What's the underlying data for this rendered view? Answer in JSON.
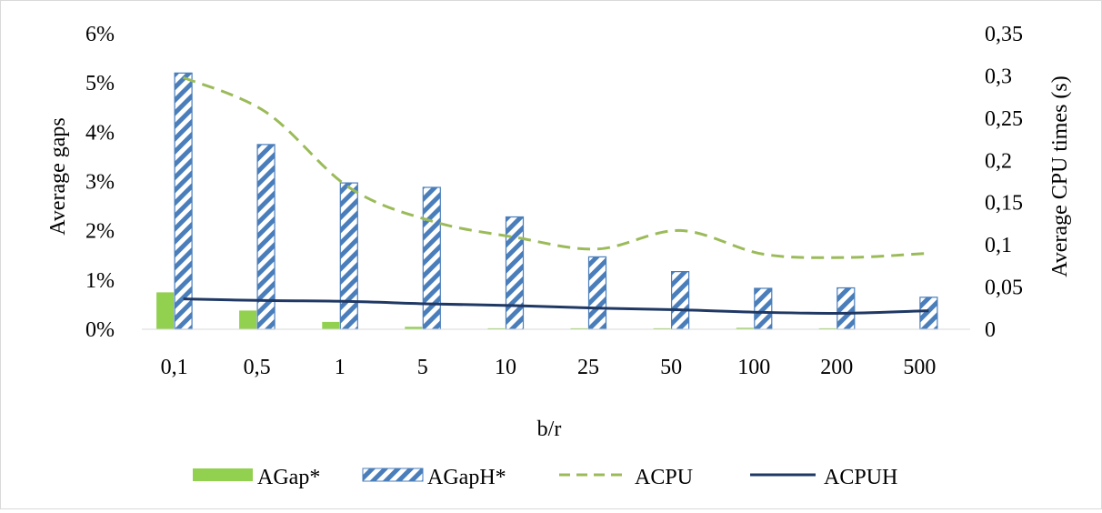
{
  "chart_data": {
    "type": "bar",
    "title": "",
    "categories": [
      "0,1",
      "0,5",
      "1",
      "5",
      "10",
      "25",
      "50",
      "100",
      "200",
      "500"
    ],
    "xlabel": "b/r",
    "ylabel": "Average gaps",
    "y2label": "Average CPU times (s)",
    "ylim": [
      0,
      6
    ],
    "y_ticks": [
      "0%",
      "1%",
      "2%",
      "3%",
      "4%",
      "5%",
      "6%"
    ],
    "y2lim": [
      0,
      0.35
    ],
    "y2_ticks": [
      "0",
      "0,05",
      "0,1",
      "0,15",
      "0,2",
      "0,25",
      "0,3",
      "0,35"
    ],
    "grid": false,
    "legend_position": "bottom",
    "series": [
      {
        "name": "AGap*",
        "kind": "bar",
        "axis": "left",
        "style": "solid",
        "color": "#92d050",
        "values": [
          0.75,
          0.38,
          0.15,
          0.05,
          0.02,
          0.02,
          0.02,
          0.03,
          0.02,
          0.0
        ]
      },
      {
        "name": "AGapH*",
        "kind": "bar",
        "axis": "left",
        "style": "hatched",
        "color": "#4a7ebb",
        "values": [
          5.2,
          3.75,
          2.97,
          2.88,
          2.28,
          1.47,
          1.17,
          0.83,
          0.84,
          0.65
        ]
      },
      {
        "name": "ACPU",
        "kind": "line",
        "axis": "right",
        "style": "dashed",
        "color": "#9bbb59",
        "values": [
          0.298,
          0.257,
          0.168,
          0.128,
          0.109,
          0.095,
          0.117,
          0.089,
          0.085,
          0.09
        ]
      },
      {
        "name": "ACPUH",
        "kind": "line",
        "axis": "right",
        "style": "solid",
        "color": "#1f3864",
        "values": [
          0.036,
          0.034,
          0.033,
          0.03,
          0.028,
          0.025,
          0.023,
          0.02,
          0.019,
          0.022
        ]
      }
    ]
  }
}
